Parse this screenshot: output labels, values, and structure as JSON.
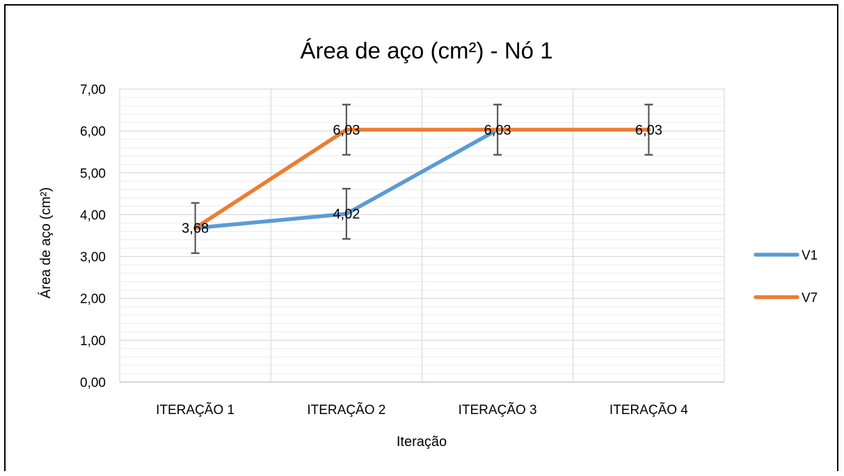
{
  "chart_data": {
    "type": "line",
    "title": "Área de aço (cm²) - Nó 1",
    "xlabel": "Iteração",
    "ylabel": "Área de aço (cm²)",
    "categories": [
      "ITERAÇÃO 1",
      "ITERAÇÃO 2",
      "ITERAÇÃO 3",
      "ITERAÇÃO 4"
    ],
    "ylim": [
      0,
      7
    ],
    "y_ticks": [
      "0,00",
      "1,00",
      "2,00",
      "3,00",
      "4,00",
      "5,00",
      "6,00",
      "7,00"
    ],
    "grid": true,
    "legend_position": "right",
    "error_bar_value": 0.6,
    "series": [
      {
        "name": "V1",
        "color": "#5B9BD5",
        "values": [
          3.68,
          4.02,
          6.03,
          null
        ]
      },
      {
        "name": "V7",
        "color": "#ED7D31",
        "values": [
          3.68,
          6.03,
          6.03,
          6.03
        ]
      }
    ],
    "data_labels": [
      {
        "category_index": 0,
        "value": 3.68,
        "text": "3,68"
      },
      {
        "category_index": 1,
        "value": 4.02,
        "text": "4,02"
      },
      {
        "category_index": 1,
        "value": 6.03,
        "text": "6,03"
      },
      {
        "category_index": 2,
        "value": 6.03,
        "text": "6,03"
      },
      {
        "category_index": 3,
        "value": 6.03,
        "text": "6,03"
      }
    ]
  }
}
